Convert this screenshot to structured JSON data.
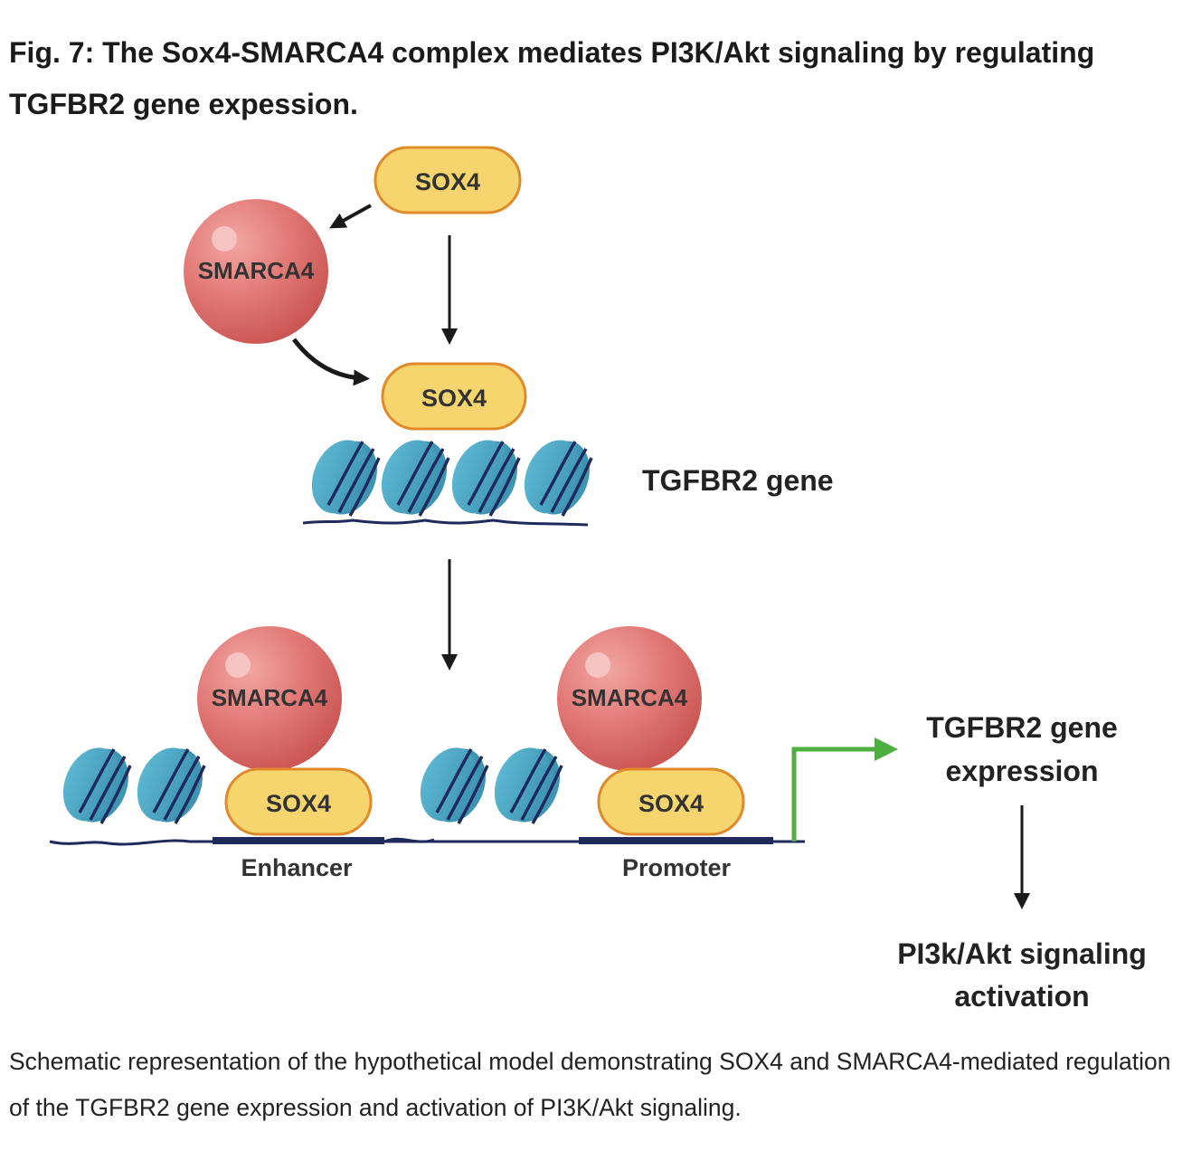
{
  "figure": {
    "title": "Fig. 7: The Sox4-SMARCA4 complex mediates PI3K/Akt signaling by regulating TGFBR2 gene expession.",
    "caption": "Schematic representation of the hypothetical model demonstrating SOX4 and SMARCA4-mediated regulation of the TGFBR2 gene expression and activation of PI3K/Akt signaling."
  },
  "diagram": {
    "sox4_label": "SOX4",
    "smarca4_label": "SMARCA4",
    "gene_label": "TGFBR2 gene",
    "enhancer_label": "Enhancer",
    "promoter_label": "Promoter",
    "expression_line1": "TGFBR2 gene",
    "expression_line2": "expression",
    "signaling_line1": "PI3k/Akt signaling",
    "signaling_line2": "activation"
  },
  "colors": {
    "sox4_fill": "#f7d56e",
    "sox4_stroke": "#e08a2a",
    "smarca4_fill": "#e07673",
    "nucleosome": "#4aa3c0",
    "dna": "#1f2a5c",
    "green_arrow": "#4caf3f",
    "arrow": "#1a1a1a"
  }
}
